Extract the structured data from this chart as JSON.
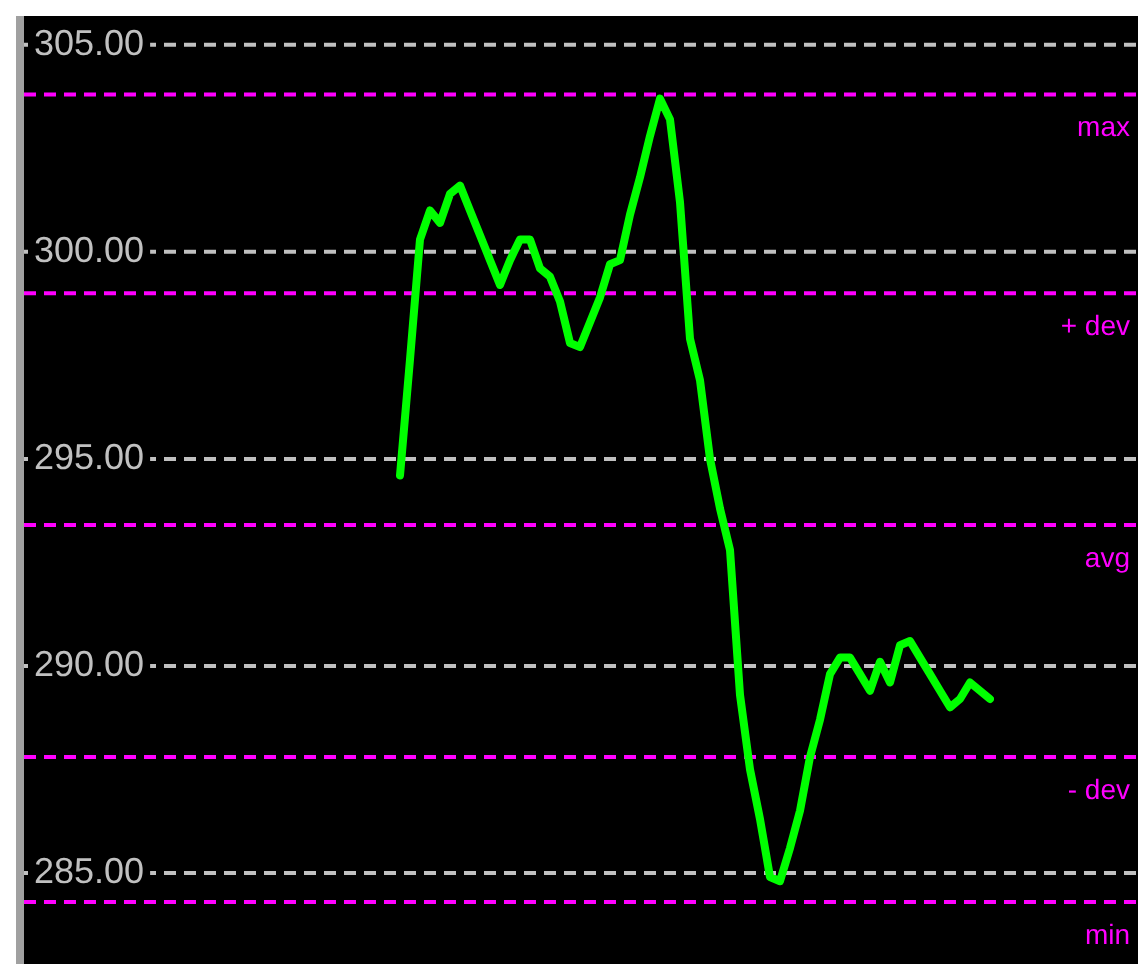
{
  "chart_data": {
    "type": "line",
    "ylim": [
      282.8,
      305.6
    ],
    "yticks": [
      {
        "value": 285,
        "label": "285.00"
      },
      {
        "value": 290,
        "label": "290.00"
      },
      {
        "value": 295,
        "label": "295.00"
      },
      {
        "value": 300,
        "label": "300.00"
      },
      {
        "value": 305,
        "label": "305.00"
      }
    ],
    "tick_labels": "y",
    "grid": "y",
    "legend": false,
    "categories": [
      null,
      null,
      null,
      null,
      null,
      null,
      null,
      null,
      null,
      null,
      null,
      null,
      null,
      null,
      null,
      null,
      null,
      null,
      null,
      null,
      null,
      null,
      null,
      null,
      null,
      null,
      null,
      null,
      null,
      null,
      null,
      null,
      null,
      null,
      null,
      null,
      null,
      null,
      null,
      null,
      null,
      null,
      null,
      null,
      null,
      null,
      null,
      null,
      null,
      null,
      null,
      null,
      null,
      null,
      null,
      null,
      null,
      null,
      null,
      null
    ],
    "series": [
      {
        "color": "#00ff00",
        "values": [
          294.6,
          297.4,
          300.3,
          301.0,
          300.7,
          301.4,
          301.6,
          301.0,
          300.4,
          299.8,
          299.2,
          299.8,
          300.3,
          300.3,
          299.6,
          299.4,
          298.8,
          297.8,
          297.7,
          298.3,
          298.9,
          299.7,
          299.8,
          300.9,
          301.8,
          302.8,
          303.7,
          303.2,
          301.2,
          297.9,
          296.9,
          295.0,
          293.8,
          292.8,
          289.3,
          287.5,
          286.3,
          284.9,
          284.8,
          285.6,
          286.5,
          287.8,
          288.7,
          289.8,
          290.2,
          290.2,
          289.8,
          289.4,
          290.1,
          289.6,
          290.5,
          290.6,
          290.2,
          289.8,
          289.4,
          289.0,
          289.2,
          289.6,
          289.4,
          289.2
        ]
      }
    ],
    "ref_lines": [
      {
        "axis": "y",
        "value": 303.8,
        "label": "max",
        "color": "#ff00ff",
        "line_style": "dashed"
      },
      {
        "axis": "y",
        "value": 299.0,
        "label": "+ dev",
        "color": "#ff00ff",
        "line_style": "dashed"
      },
      {
        "axis": "y",
        "value": 293.4,
        "label": "avg",
        "color": "#ff00ff",
        "line_style": "dashed"
      },
      {
        "axis": "y",
        "value": 287.8,
        "label": "- dev",
        "color": "#ff00ff",
        "line_style": "dashed"
      },
      {
        "axis": "y",
        "value": 284.3,
        "label": "min",
        "color": "#ff00ff",
        "line_style": "dashed"
      }
    ]
  }
}
